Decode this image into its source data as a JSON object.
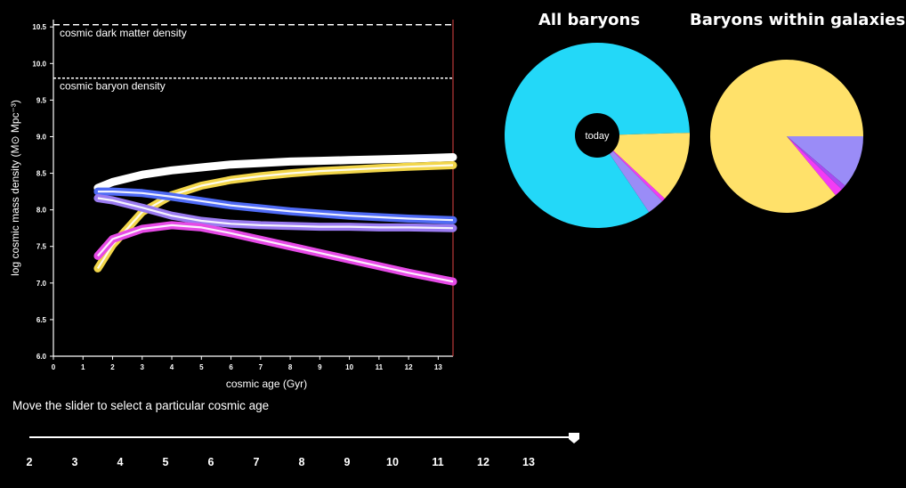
{
  "chart_data": [
    {
      "type": "line",
      "xlabel": "cosmic age (Gyr)",
      "ylabel": "log cosmic mass density (M⊙ Mpc⁻³)",
      "xlim": [
        0,
        13.5
      ],
      "ylim": [
        6.0,
        10.6
      ],
      "x_ticks": [
        "0",
        "1",
        "2",
        "3",
        "4",
        "5",
        "6",
        "7",
        "8",
        "9",
        "10",
        "11",
        "12",
        "13"
      ],
      "y_ticks": [
        "6.0",
        "6.5",
        "7.0",
        "7.5",
        "8.0",
        "8.5",
        "9.0",
        "9.5",
        "10.0",
        "10.5"
      ],
      "reference_lines": [
        {
          "label": "cosmic dark matter density",
          "y": 10.53
        },
        {
          "label": "cosmic baryon density",
          "y": 9.8
        }
      ],
      "marker_x": 13.5,
      "series": [
        {
          "color": "#ffffff",
          "x": [
            1.5,
            2,
            3,
            4,
            5,
            6,
            7,
            8,
            9,
            10,
            11,
            12,
            13.5
          ],
          "y": [
            8.3,
            8.38,
            8.48,
            8.54,
            8.58,
            8.62,
            8.64,
            8.66,
            8.67,
            8.68,
            8.69,
            8.7,
            8.72
          ]
        },
        {
          "color": "#f2d64a",
          "x": [
            1.5,
            2,
            3,
            4,
            5,
            6,
            7,
            8,
            9,
            10,
            11,
            12,
            13.5
          ],
          "y": [
            7.2,
            7.52,
            7.97,
            8.2,
            8.33,
            8.41,
            8.46,
            8.5,
            8.53,
            8.55,
            8.57,
            8.59,
            8.61
          ]
        },
        {
          "color": "#4f6bf5",
          "x": [
            1.5,
            2,
            3,
            4,
            5,
            6,
            7,
            8,
            9,
            10,
            11,
            12,
            13.5
          ],
          "y": [
            8.25,
            8.25,
            8.23,
            8.18,
            8.12,
            8.06,
            8.02,
            7.98,
            7.95,
            7.92,
            7.9,
            7.88,
            7.86
          ]
        },
        {
          "color": "#9a7bf0",
          "x": [
            1.5,
            2,
            3,
            4,
            5,
            6,
            7,
            8,
            9,
            10,
            11,
            12,
            13.5
          ],
          "y": [
            8.16,
            8.13,
            8.03,
            7.92,
            7.85,
            7.81,
            7.79,
            7.78,
            7.77,
            7.77,
            7.76,
            7.76,
            7.75
          ]
        },
        {
          "color": "#e64ae6",
          "x": [
            1.5,
            2,
            3,
            4,
            5,
            6,
            7,
            8,
            9,
            10,
            11,
            12,
            13.5
          ],
          "y": [
            7.37,
            7.6,
            7.74,
            7.79,
            7.76,
            7.68,
            7.59,
            7.5,
            7.41,
            7.32,
            7.23,
            7.14,
            7.02
          ]
        }
      ]
    },
    {
      "type": "pie",
      "title": "All baryons",
      "center_label": "today",
      "values": [
        0.84,
        0.03,
        0.006,
        0.124
      ],
      "colors": [
        "#23d8f8",
        "#9a8cf7",
        "#f33cf5",
        "#ffe16a"
      ]
    },
    {
      "type": "pie",
      "title": "Baryons within galaxies",
      "values": [
        0.112,
        0.01,
        0.018,
        0.86
      ],
      "colors": [
        "#9a8cf7",
        "#a84cf2",
        "#f33cf5",
        "#ffe16a"
      ]
    }
  ],
  "instruction": "Move the slider to select a particular cosmic age",
  "slider": {
    "ticks": [
      "2",
      "3",
      "4",
      "5",
      "6",
      "7",
      "8",
      "9",
      "10",
      "11",
      "12",
      "13"
    ],
    "value": 13.5,
    "min": 1.5,
    "max": 13.5
  }
}
